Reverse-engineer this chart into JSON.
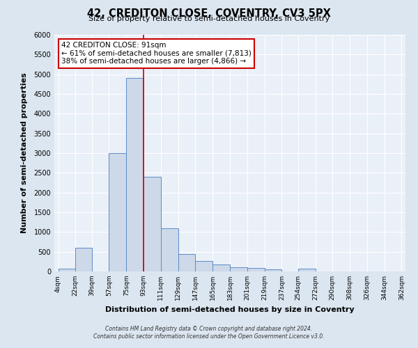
{
  "title": "42, CREDITON CLOSE, COVENTRY, CV3 5PX",
  "subtitle": "Size of property relative to semi-detached houses in Coventry",
  "xlabel": "Distribution of semi-detached houses by size in Coventry",
  "ylabel": "Number of semi-detached properties",
  "bin_edges": [
    4,
    22,
    39,
    57,
    75,
    93,
    111,
    129,
    147,
    165,
    183,
    201,
    219,
    237,
    254,
    272,
    290,
    308,
    326,
    344,
    362
  ],
  "bar_heights": [
    75,
    600,
    0,
    3000,
    4900,
    2400,
    1100,
    450,
    260,
    175,
    100,
    80,
    55,
    0,
    75,
    0,
    0,
    0,
    0,
    0
  ],
  "bar_color": "#cdd8e8",
  "bar_edge_color": "#5b8cc8",
  "property_line_x": 93,
  "property_line_color": "#cc0000",
  "annotation_text": "42 CREDITON CLOSE: 91sqm\n← 61% of semi-detached houses are smaller (7,813)\n38% of semi-detached houses are larger (4,866) →",
  "annotation_box_color": "#ffffff",
  "annotation_box_edge_color": "#cc0000",
  "ylim": [
    0,
    6000
  ],
  "yticks": [
    0,
    500,
    1000,
    1500,
    2000,
    2500,
    3000,
    3500,
    4000,
    4500,
    5000,
    5500,
    6000
  ],
  "footer_line1": "Contains HM Land Registry data © Crown copyright and database right 2024.",
  "footer_line2": "Contains public sector information licensed under the Open Government Licence v3.0.",
  "background_color": "#dce6f0",
  "plot_background_color": "#eaf0f8",
  "grid_color": "#ffffff",
  "tick_labels": [
    "4sqm",
    "22sqm",
    "39sqm",
    "57sqm",
    "75sqm",
    "93sqm",
    "111sqm",
    "129sqm",
    "147sqm",
    "165sqm",
    "183sqm",
    "201sqm",
    "219sqm",
    "237sqm",
    "254sqm",
    "272sqm",
    "290sqm",
    "308sqm",
    "326sqm",
    "344sqm",
    "362sqm"
  ]
}
